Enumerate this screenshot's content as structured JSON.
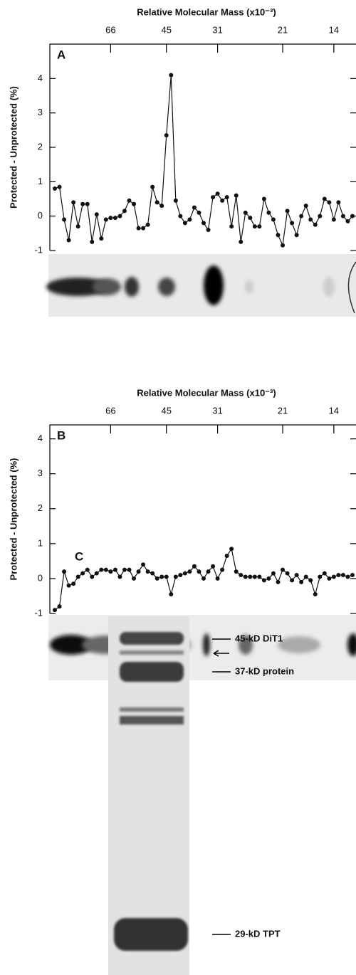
{
  "chart_data": [
    {
      "type": "line",
      "panel_label": "A",
      "xlabel": "Relative Molecular Mass (x10⁻³)",
      "ylabel": "Protected - Unprotected (%)",
      "categories": [
        null,
        null,
        null,
        null,
        null,
        null,
        null,
        null,
        null,
        null,
        null,
        null,
        "66",
        null,
        null,
        null,
        null,
        null,
        null,
        null,
        null,
        null,
        null,
        null,
        "45",
        null,
        null,
        null,
        null,
        null,
        null,
        null,
        null,
        null,
        null,
        "31",
        null,
        null,
        null,
        null,
        null,
        null,
        null,
        null,
        null,
        null,
        null,
        null,
        null,
        "21",
        null,
        null,
        null,
        null,
        null,
        null,
        null,
        null,
        null,
        null,
        "14",
        null,
        null,
        null,
        null
      ],
      "series": [
        {
          "color": "#111111",
          "values": [
            0.8,
            0.85,
            -0.1,
            -0.7,
            0.4,
            -0.3,
            0.35,
            0.35,
            -0.75,
            0.05,
            -0.65,
            -0.1,
            -0.05,
            -0.05,
            0.0,
            0.15,
            0.45,
            0.35,
            -0.35,
            -0.35,
            -0.25,
            0.85,
            0.4,
            0.3,
            2.35,
            4.1,
            0.45,
            0.0,
            -0.2,
            -0.1,
            0.25,
            0.1,
            -0.2,
            -0.4,
            0.55,
            0.65,
            0.45,
            0.55,
            -0.3,
            0.6,
            -0.75,
            0.1,
            -0.05,
            -0.3,
            -0.3,
            0.5,
            0.1,
            -0.1,
            -0.55,
            -0.85,
            0.15,
            -0.2,
            -0.55,
            0.0,
            0.3,
            -0.1,
            -0.25,
            0.0,
            0.5,
            0.4,
            -0.1,
            0.4,
            0.0,
            -0.15,
            0.0
          ]
        }
      ],
      "ylim": [
        -1,
        5
      ],
      "yticks": [
        -1,
        0,
        1,
        2,
        3,
        4
      ]
    },
    {
      "type": "line",
      "panel_label": "B",
      "xlabel": "Relative Molecular Mass (x10⁻³)",
      "ylabel": "Protected - Unprotected (%)",
      "categories": [
        null,
        null,
        null,
        null,
        null,
        null,
        null,
        null,
        null,
        null,
        null,
        null,
        "66",
        null,
        null,
        null,
        null,
        null,
        null,
        null,
        null,
        null,
        null,
        null,
        "45",
        null,
        null,
        null,
        null,
        null,
        null,
        null,
        null,
        null,
        null,
        "31",
        null,
        null,
        null,
        null,
        null,
        null,
        null,
        null,
        null,
        null,
        null,
        null,
        null,
        "21",
        null,
        null,
        null,
        null,
        null,
        null,
        null,
        null,
        null,
        null,
        "14",
        null,
        null,
        null,
        null
      ],
      "series": [
        {
          "color": "#111111",
          "values": [
            -0.9,
            -0.8,
            0.2,
            -0.2,
            -0.15,
            0.05,
            0.15,
            0.25,
            0.05,
            0.15,
            0.25,
            0.25,
            0.2,
            0.25,
            0.05,
            0.25,
            0.25,
            0.0,
            0.2,
            0.4,
            0.2,
            0.15,
            0.0,
            0.05,
            0.05,
            -0.45,
            0.05,
            0.1,
            0.15,
            0.2,
            0.35,
            0.2,
            0.0,
            0.2,
            0.35,
            0.0,
            0.25,
            0.65,
            0.85,
            0.2,
            0.1,
            0.05,
            0.05,
            0.05,
            0.05,
            -0.05,
            0.0,
            0.15,
            -0.1,
            0.25,
            0.15,
            -0.05,
            0.1,
            -0.1,
            0.05,
            -0.05,
            -0.45,
            0.05,
            0.15,
            0.0,
            0.05,
            0.1,
            0.1,
            0.05,
            0.1
          ]
        }
      ],
      "ylim": [
        -1,
        4.4
      ],
      "yticks": [
        -1,
        0,
        1,
        2,
        3,
        4
      ]
    }
  ],
  "panel_c": {
    "label": "C",
    "annotations": [
      "45-kD DiT1",
      "37-kD protein",
      "29-kD TPT"
    ]
  }
}
